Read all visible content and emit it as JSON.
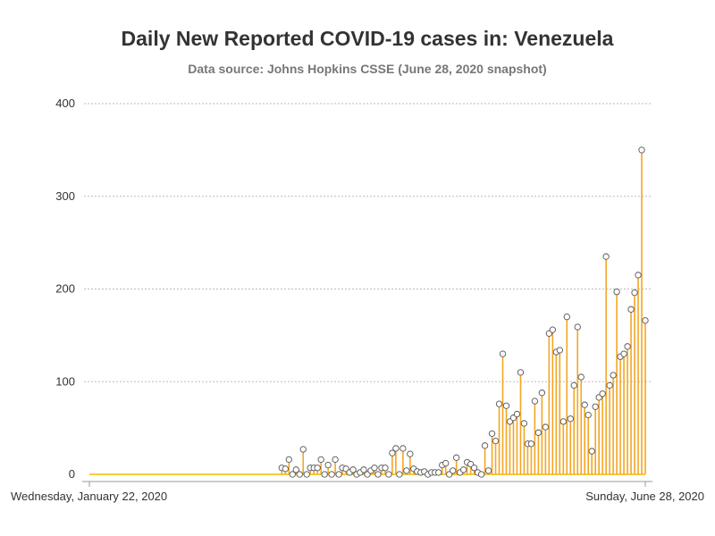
{
  "chart_data": {
    "type": "needle",
    "title": "Daily New Reported COVID-19 cases in: Venezuela",
    "subtitle": "Data source: Johns Hopkins CSSE (June 28, 2020 snapshot)",
    "xlabel": "",
    "ylabel": "",
    "x_start": "2020-01-22",
    "x_end": "2020-06-28",
    "x_tick_labels": [
      "Wednesday, January 22, 2020",
      "Sunday, June 28, 2020"
    ],
    "ylim": [
      0,
      400
    ],
    "y_ticks": [
      0,
      100,
      200,
      300,
      400
    ],
    "grid": true,
    "legend": "none",
    "colors": {
      "needle": "#f5a623",
      "baseline": "#f5b800",
      "marker_fill": "#ffffff",
      "marker_stroke": "#555555",
      "grid": "#bbbbbb",
      "axis": "#999999"
    },
    "values": [
      0,
      0,
      0,
      0,
      0,
      0,
      0,
      0,
      0,
      0,
      0,
      0,
      0,
      0,
      0,
      0,
      0,
      0,
      0,
      0,
      0,
      0,
      0,
      0,
      0,
      0,
      0,
      0,
      0,
      0,
      0,
      0,
      0,
      0,
      0,
      0,
      0,
      0,
      0,
      0,
      0,
      0,
      0,
      0,
      0,
      0,
      0,
      0,
      0,
      0,
      0,
      0,
      0,
      0,
      7,
      6,
      16,
      0,
      5,
      0,
      27,
      0,
      7,
      7,
      7,
      16,
      0,
      10,
      0,
      16,
      0,
      7,
      6,
      2,
      5,
      0,
      2,
      5,
      0,
      4,
      7,
      0,
      7,
      7,
      0,
      23,
      28,
      0,
      28,
      4,
      22,
      6,
      3,
      2,
      3,
      0,
      2,
      2,
      2,
      10,
      12,
      0,
      4,
      18,
      2,
      5,
      13,
      11,
      7,
      2,
      0,
      31,
      4,
      44,
      36,
      76,
      130,
      74,
      57,
      61,
      65,
      110,
      55,
      33,
      33,
      79,
      45,
      88,
      51,
      152,
      156,
      132,
      134,
      57,
      170,
      60,
      96,
      159,
      105,
      75,
      64,
      25,
      73,
      83,
      87,
      235,
      96,
      107,
      197,
      127,
      130,
      138,
      178,
      196,
      215,
      350,
      166
    ]
  }
}
